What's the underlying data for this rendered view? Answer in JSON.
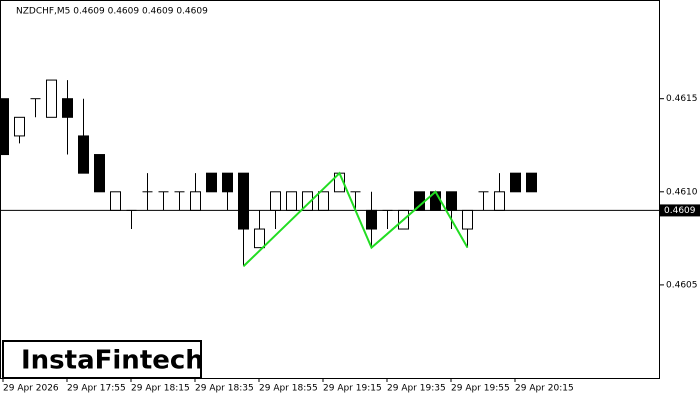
{
  "chart_data": {
    "type": "candlestick",
    "header": "NZDCHF,M5  0.4609 0.4609 0.4609 0.4609",
    "logo": "InstaFintech",
    "categories": [
      "29 Apr 2026",
      null,
      null,
      null,
      "29 Apr 17:55",
      null,
      null,
      null,
      "29 Apr 18:15",
      null,
      null,
      null,
      "29 Apr 18:35",
      null,
      null,
      null,
      "29 Apr 18:55",
      null,
      null,
      null,
      "29 Apr 19:15",
      null,
      null,
      null,
      "29 Apr 19:35",
      null,
      null,
      null,
      "29 Apr 19:55",
      null,
      null,
      null,
      "29 Apr 20:15",
      null
    ],
    "open": [
      0.4615,
      0.4613,
      0.4615,
      0.4614,
      0.4615,
      0.4613,
      0.4612,
      0.4609,
      0.4609,
      0.461,
      0.461,
      0.461,
      0.4609,
      0.4611,
      0.4611,
      0.4611,
      0.4607,
      0.4609,
      0.4609,
      0.4609,
      0.4609,
      0.461,
      0.461,
      0.4609,
      0.4609,
      0.4608,
      0.461,
      0.461,
      0.461,
      0.4608,
      0.461,
      0.4609,
      0.4611,
      0.4611
    ],
    "high": [
      0.4615,
      0.4614,
      0.4615,
      0.4616,
      0.4616,
      0.4615,
      0.4612,
      0.461,
      0.4609,
      0.4611,
      0.461,
      0.461,
      0.4611,
      0.4611,
      0.4611,
      0.4611,
      0.4609,
      0.461,
      0.461,
      0.461,
      0.461,
      0.4611,
      0.461,
      0.461,
      0.4609,
      0.4609,
      0.461,
      0.461,
      0.461,
      0.4609,
      0.461,
      0.4611,
      0.4611,
      0.4611
    ],
    "low": [
      0.4612,
      0.46126,
      0.4614,
      0.4614,
      0.4612,
      0.4611,
      0.461,
      0.4609,
      0.4608,
      0.4609,
      0.4609,
      0.4609,
      0.4609,
      0.461,
      0.4609,
      0.4606,
      0.4607,
      0.4608,
      0.4609,
      0.4609,
      0.4609,
      0.461,
      0.4609,
      0.4607,
      0.4608,
      0.4608,
      0.4609,
      0.4609,
      0.4608,
      0.4607,
      0.4609,
      0.4609,
      0.461,
      0.461
    ],
    "close": [
      0.4612,
      0.4614,
      0.4615,
      0.4616,
      0.4614,
      0.4611,
      0.461,
      0.461,
      0.4609,
      0.461,
      0.461,
      0.461,
      0.461,
      0.461,
      0.461,
      0.4608,
      0.4608,
      0.461,
      0.461,
      0.461,
      0.461,
      0.4611,
      0.461,
      0.4608,
      0.4609,
      0.4609,
      0.4609,
      0.4609,
      0.4609,
      0.4609,
      0.461,
      0.461,
      0.461,
      0.461
    ],
    "ylim": [
      0.46,
      0.46203
    ],
    "yticks": [
      0.4605,
      {
        "value": 0.461,
        "label": "0.4610"
      },
      0.4615
    ],
    "last_price": 0.4609,
    "pattern": {
      "color": "#22dd22",
      "index": [
        15,
        21,
        23,
        27,
        29
      ],
      "price": [
        0.4606,
        0.4611,
        0.4607,
        0.461,
        0.4607
      ]
    }
  }
}
